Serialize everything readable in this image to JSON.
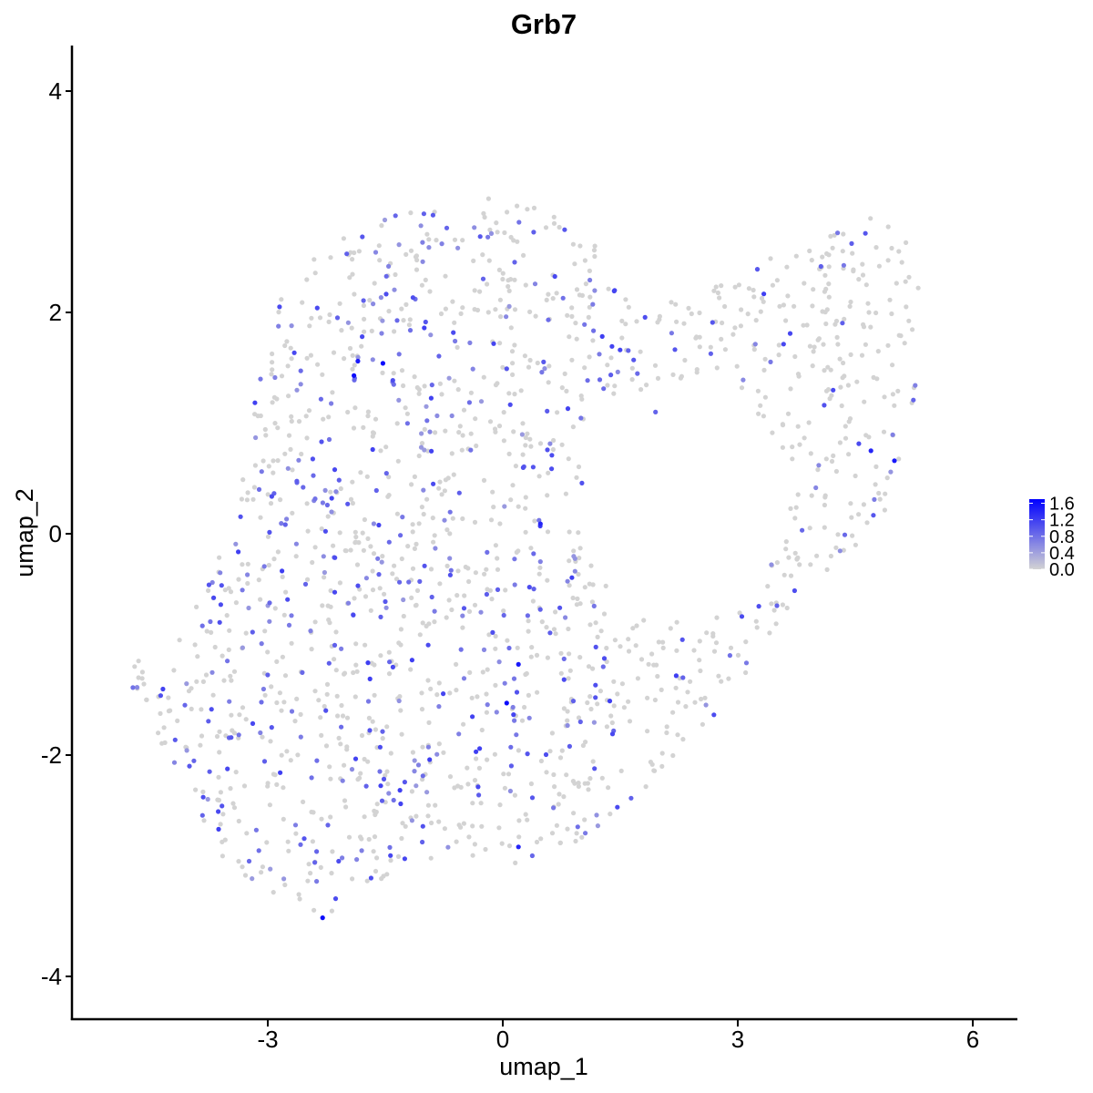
{
  "chart_data": {
    "type": "scatter",
    "title": "Grb7",
    "xlabel": "umap_1",
    "ylabel": "umap_2",
    "xlim": [
      -5.7,
      6.5
    ],
    "ylim": [
      -4.4,
      4.4
    ],
    "x_ticks": [
      -3,
      0,
      3,
      6
    ],
    "x_tick_labels": [
      "-3",
      "0",
      "3",
      "6"
    ],
    "y_ticks": [
      -4,
      -2,
      0,
      2,
      4
    ],
    "y_tick_labels": [
      "-4",
      "-2",
      "0",
      "2",
      "4"
    ],
    "grid": false,
    "legend": {
      "placement": "right",
      "type": "colorbar",
      "title": "",
      "ticks": [
        0.0,
        0.4,
        0.8,
        1.2,
        1.6
      ],
      "tick_labels": [
        "0.0",
        "0.4",
        "0.8",
        "1.2",
        "1.6"
      ],
      "range": [
        0.0,
        1.7
      ]
    },
    "color_low": "#d3d3d3",
    "color_high": "#0000ff",
    "cluster_outline": [
      [
        -4.8,
        -1.3
      ],
      [
        -4.4,
        -1.8
      ],
      [
        -4.1,
        -2.4
      ],
      [
        -3.6,
        -2.9
      ],
      [
        -3.1,
        -3.2
      ],
      [
        -2.6,
        -3.4
      ],
      [
        -2.3,
        -3.5
      ],
      [
        -1.8,
        -3.2
      ],
      [
        -1.2,
        -3.0
      ],
      [
        -0.5,
        -2.9
      ],
      [
        0.2,
        -3.0
      ],
      [
        1.0,
        -2.8
      ],
      [
        1.5,
        -2.5
      ],
      [
        2.3,
        -2.0
      ],
      [
        3.2,
        -1.2
      ],
      [
        3.8,
        -0.5
      ],
      [
        4.4,
        -0.2
      ],
      [
        5.0,
        0.3
      ],
      [
        5.3,
        1.2
      ],
      [
        5.4,
        2.2
      ],
      [
        5.2,
        2.6
      ],
      [
        4.6,
        3.0
      ],
      [
        4.0,
        2.6
      ],
      [
        3.3,
        2.5
      ],
      [
        2.5,
        2.2
      ],
      [
        1.8,
        2.0
      ],
      [
        1.2,
        2.6
      ],
      [
        0.6,
        2.9
      ],
      [
        0.0,
        3.1
      ],
      [
        -0.8,
        3.0
      ],
      [
        -1.8,
        2.8
      ],
      [
        -2.4,
        2.5
      ],
      [
        -2.9,
        2.1
      ],
      [
        -3.1,
        1.5
      ],
      [
        -3.3,
        0.7
      ],
      [
        -3.5,
        0.0
      ],
      [
        -3.8,
        -0.5
      ],
      [
        -4.1,
        -0.9
      ],
      [
        -4.5,
        -1.2
      ]
    ],
    "excluded_region": {
      "center": [
        2.3,
        0.3
      ],
      "radius": [
        1.3,
        1.1
      ]
    },
    "outlier_points": [
      {
        "x": -4.7,
        "y": -1.2,
        "value": 0.0
      },
      {
        "x": -4.65,
        "y": -1.3,
        "value": 0.0
      },
      {
        "x": -4.6,
        "y": -1.25,
        "value": 0.0
      },
      {
        "x": -4.65,
        "y": -1.15,
        "value": 0.0
      },
      {
        "x": -4.55,
        "y": -1.5,
        "value": 0.0
      },
      {
        "x": -4.4,
        "y": -1.8,
        "value": 0.0
      },
      {
        "x": 2.3,
        "y": -1.3,
        "value": 0.9
      },
      {
        "x": 2.9,
        "y": -1.1,
        "value": 0.8
      }
    ],
    "highlight_points": [
      {
        "x": -1.9,
        "y": 1.43,
        "value": 1.6
      },
      {
        "x": -1.53,
        "y": 1.54,
        "value": 1.6
      },
      {
        "x": -1.85,
        "y": 1.56,
        "value": 1.5
      },
      {
        "x": 0.05,
        "y": -1.53,
        "value": 1.6
      },
      {
        "x": 0.2,
        "y": -1.18,
        "value": 1.5
      },
      {
        "x": -2.3,
        "y": -3.47,
        "value": 1.6
      },
      {
        "x": 0.48,
        "y": 0.09,
        "value": 1.4
      },
      {
        "x": 4.7,
        "y": 0.75,
        "value": 1.4
      },
      {
        "x": 5.0,
        "y": 0.66,
        "value": 1.5
      },
      {
        "x": 0.2,
        "y": -2.83,
        "value": 1.4
      },
      {
        "x": -2.85,
        "y": 2.05,
        "value": 1.1
      },
      {
        "x": -3.6,
        "y": -0.64,
        "value": 1.1
      },
      {
        "x": -4.0,
        "y": -2.1,
        "value": 1.0
      },
      {
        "x": -2.95,
        "y": -1.75,
        "value": 1.0
      },
      {
        "x": -2.4,
        "y": -2.97,
        "value": 0.9
      },
      {
        "x": 3.5,
        "y": -0.65,
        "value": 0.9
      },
      {
        "x": 1.95,
        "y": 1.1,
        "value": 0.9
      },
      {
        "x": 3.25,
        "y": 2.39,
        "value": 1.0
      }
    ],
    "n_cells": 1700,
    "fraction_expressing": 0.26,
    "random_seed": 7
  }
}
